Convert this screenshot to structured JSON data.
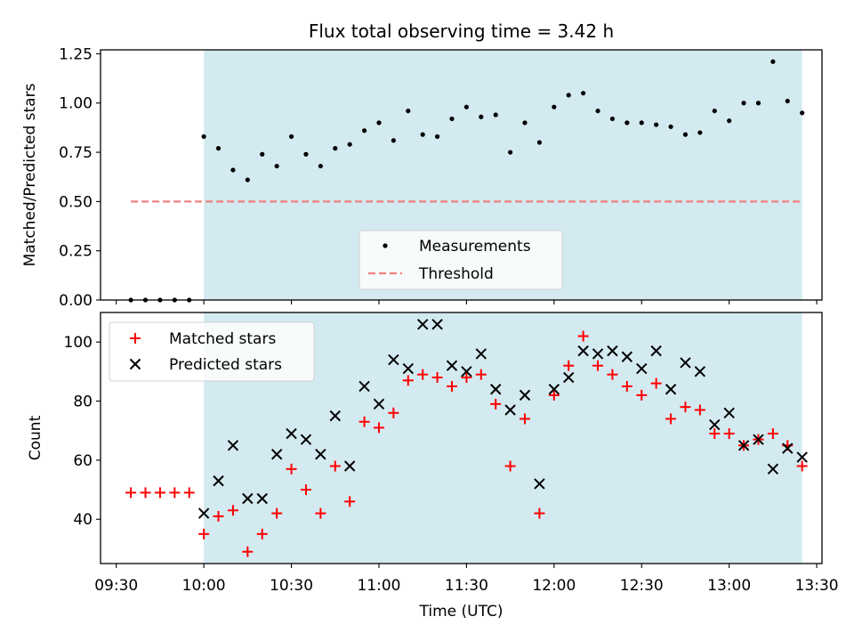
{
  "chart_data": [
    {
      "type": "scatter",
      "title": "Flux total observing time = 3.42 h",
      "xlabel": "",
      "ylabel": "Matched/Predicted stars",
      "xlim": [
        9.41,
        13.53
      ],
      "ylim": [
        0.0,
        1.27
      ],
      "yticks": [
        0.0,
        0.25,
        0.5,
        0.75,
        1.0,
        1.25
      ],
      "ytick_labels": [
        "0.00",
        "0.25",
        "0.50",
        "0.75",
        "1.00",
        "1.25"
      ],
      "shaded_span": [
        10.0,
        13.4167
      ],
      "shade_color": "#d4eaf1",
      "series": [
        {
          "name": "Measurements",
          "color": "#000000",
          "marker": "dot",
          "x": [
            9.5833,
            9.6667,
            9.75,
            9.8333,
            9.9167,
            10.0,
            10.0833,
            10.1667,
            10.25,
            10.3333,
            10.4167,
            10.5,
            10.5833,
            10.6667,
            10.75,
            10.8333,
            10.9167,
            11.0,
            11.0833,
            11.1667,
            11.25,
            11.3333,
            11.4167,
            11.5,
            11.5833,
            11.6667,
            11.75,
            11.8333,
            11.9167,
            12.0,
            12.0833,
            12.1667,
            12.25,
            12.3333,
            12.4167,
            12.5,
            12.5833,
            12.6667,
            12.75,
            12.8333,
            12.9167,
            13.0,
            13.0833,
            13.1667,
            13.25,
            13.3333,
            13.4167
          ],
          "y": [
            0.0,
            0.0,
            0.0,
            0.0,
            0.0,
            0.83,
            0.77,
            0.66,
            0.61,
            0.74,
            0.68,
            0.83,
            0.74,
            0.68,
            0.77,
            0.79,
            0.86,
            0.9,
            0.81,
            0.96,
            0.84,
            0.83,
            0.92,
            0.98,
            0.93,
            0.94,
            0.75,
            0.9,
            0.8,
            0.98,
            1.04,
            1.05,
            0.96,
            0.92,
            0.9,
            0.9,
            0.89,
            0.88,
            0.84,
            0.85,
            0.96,
            0.91,
            1.0,
            1.0,
            1.21,
            1.01,
            0.95
          ]
        },
        {
          "name": "Threshold",
          "color": "#f08080",
          "style": "dashed",
          "x": [
            9.5833,
            13.4167
          ],
          "y": [
            0.5,
            0.5
          ]
        }
      ],
      "legend": {
        "position": "lower-center",
        "entries": [
          "Measurements",
          "Threshold"
        ]
      }
    },
    {
      "type": "scatter",
      "title": "",
      "xlabel": "Time (UTC)",
      "ylabel": "Count",
      "xlim": [
        9.41,
        13.53
      ],
      "ylim": [
        25,
        110
      ],
      "yticks": [
        40,
        60,
        80,
        100
      ],
      "ytick_labels": [
        "40",
        "60",
        "80",
        "100"
      ],
      "xticks": [
        9.5,
        10.0,
        10.5,
        11.0,
        11.5,
        12.0,
        12.5,
        13.0,
        13.5
      ],
      "xtick_labels": [
        "09:30",
        "10:00",
        "10:30",
        "11:00",
        "11:30",
        "12:00",
        "12:30",
        "13:00",
        "13:30"
      ],
      "shaded_span": [
        10.0,
        13.4167
      ],
      "shade_color": "#d4eaf1",
      "series": [
        {
          "name": "Matched stars",
          "color": "#ff0000",
          "marker": "plus",
          "x": [
            9.5833,
            9.6667,
            9.75,
            9.8333,
            9.9167,
            10.0,
            10.0833,
            10.1667,
            10.25,
            10.3333,
            10.4167,
            10.5,
            10.5833,
            10.6667,
            10.75,
            10.8333,
            10.9167,
            11.0,
            11.0833,
            11.1667,
            11.25,
            11.3333,
            11.4167,
            11.5,
            11.5833,
            11.6667,
            11.75,
            11.8333,
            11.9167,
            12.0,
            12.0833,
            12.1667,
            12.25,
            12.3333,
            12.4167,
            12.5,
            12.5833,
            12.6667,
            12.75,
            12.8333,
            12.9167,
            13.0,
            13.0833,
            13.1667,
            13.25,
            13.3333,
            13.4167
          ],
          "y": [
            49,
            49,
            49,
            49,
            49,
            35,
            41,
            43,
            29,
            35,
            42,
            57,
            50,
            42,
            58,
            46,
            73,
            71,
            76,
            87,
            89,
            88,
            85,
            88,
            89,
            79,
            58,
            74,
            42,
            82,
            92,
            102,
            92,
            89,
            85,
            82,
            86,
            74,
            78,
            77,
            69,
            69,
            65,
            67,
            69,
            65,
            58
          ]
        },
        {
          "name": "Predicted stars",
          "color": "#000000",
          "marker": "x",
          "x": [
            10.0,
            10.0833,
            10.1667,
            10.25,
            10.3333,
            10.4167,
            10.5,
            10.5833,
            10.6667,
            10.75,
            10.8333,
            10.9167,
            11.0,
            11.0833,
            11.1667,
            11.25,
            11.3333,
            11.4167,
            11.5,
            11.5833,
            11.6667,
            11.75,
            11.8333,
            11.9167,
            12.0,
            12.0833,
            12.1667,
            12.25,
            12.3333,
            12.4167,
            12.5,
            12.5833,
            12.6667,
            12.75,
            12.8333,
            12.9167,
            13.0,
            13.0833,
            13.1667,
            13.25,
            13.3333,
            13.4167
          ],
          "y": [
            42,
            53,
            65,
            47,
            47,
            62,
            69,
            67,
            62,
            75,
            58,
            85,
            79,
            94,
            91,
            106,
            106,
            92,
            90,
            96,
            84,
            77,
            82,
            52,
            84,
            88,
            97,
            96,
            97,
            95,
            91,
            97,
            84,
            93,
            90,
            72,
            76,
            65,
            67,
            57,
            64,
            61
          ]
        }
      ],
      "legend": {
        "position": "upper-left",
        "entries": [
          "Matched stars",
          "Predicted stars"
        ]
      }
    }
  ]
}
